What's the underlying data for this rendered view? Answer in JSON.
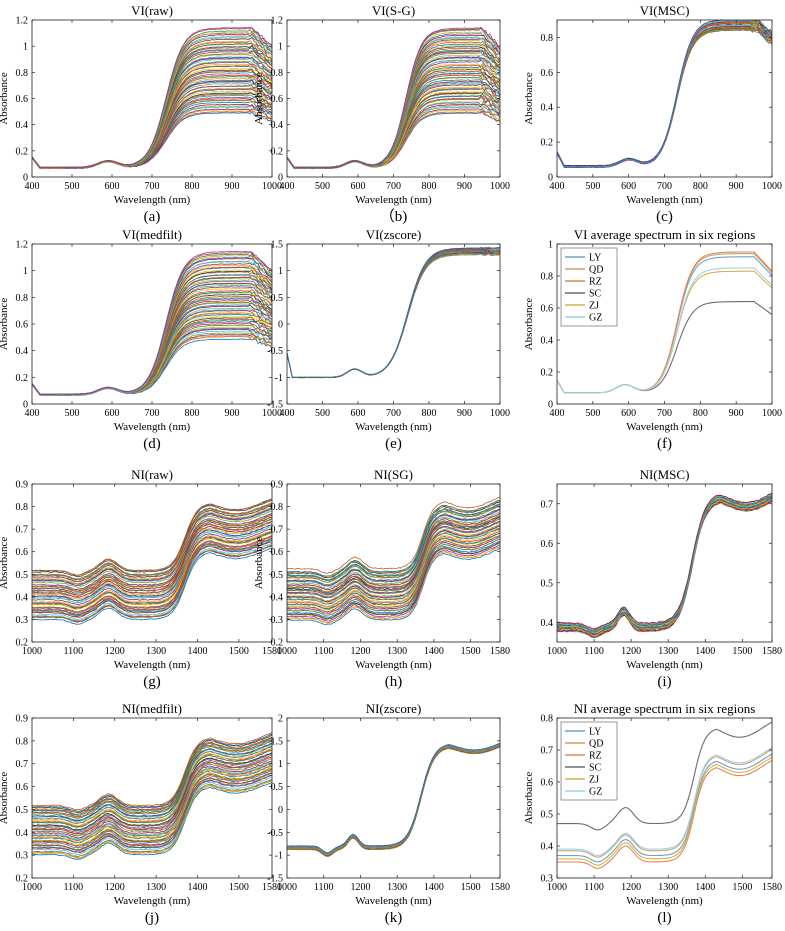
{
  "colors": {
    "palette": [
      "#0072BD",
      "#D95319",
      "#EDB120",
      "#7E2F8E",
      "#77AC30",
      "#4DBEEE",
      "#A2142F",
      "#1f77b4",
      "#e6a23c",
      "#3a8f3a",
      "#c0392b",
      "#8e44ad",
      "#16a085",
      "#d35400",
      "#2c3e50",
      "#f1c40f"
    ],
    "regions": {
      "LY": "#6f9fcf",
      "QD": "#c9a36a",
      "RZ": "#e08a5a",
      "SC": "#6d6d6d",
      "ZJ": "#d8b24a",
      "GZ": "#9fd3ea"
    }
  },
  "chart_data": [
    {
      "id": "a",
      "type": "line",
      "title": "VI(raw)",
      "caption": "(a)",
      "xlabel": "Wavelength (nm)",
      "ylabel": "Absorbance",
      "xlim": [
        400,
        1000
      ],
      "ylim": [
        0,
        1.2
      ],
      "xticks": [
        400,
        500,
        600,
        700,
        800,
        900,
        1000
      ],
      "yticks": [
        0,
        0.2,
        0.4,
        0.6,
        0.8,
        1,
        1.2
      ],
      "series_count": 60,
      "series_shape": "vis_raw",
      "series_low": 0.5,
      "series_high": 1.15
    },
    {
      "id": "b",
      "type": "line",
      "title": "VI(S-G)",
      "caption": "（b)",
      "xlabel": "Wavelength (nm)",
      "ylabel": "Absorbance",
      "xlim": [
        400,
        1000
      ],
      "ylim": [
        0,
        1.2
      ],
      "xticks": [
        400,
        500,
        600,
        700,
        800,
        900,
        1000
      ],
      "yticks": [
        0,
        0.2,
        0.4,
        0.6,
        0.8,
        1,
        1.2
      ],
      "series_count": 60,
      "series_shape": "vis_raw",
      "series_low": 0.5,
      "series_high": 1.15
    },
    {
      "id": "c",
      "type": "line",
      "title": "VI(MSC)",
      "caption": "(c)",
      "xlabel": "Wavelength (nm)",
      "ylabel": "Absorbance",
      "xlim": [
        400,
        1000
      ],
      "ylim": [
        0,
        0.9
      ],
      "xticks": [
        400,
        500,
        600,
        700,
        800,
        900,
        1000
      ],
      "yticks": [
        0,
        0.2,
        0.4,
        0.6,
        0.8
      ],
      "series_count": 40,
      "series_shape": "vis_msc",
      "series_low": 0.84,
      "series_high": 0.9
    },
    {
      "id": "d",
      "type": "line",
      "title": "VI(medfilt)",
      "caption": "(d)",
      "xlabel": "Wavelength (nm)",
      "ylabel": "Absorbance",
      "xlim": [
        400,
        1000
      ],
      "ylim": [
        0,
        1.2
      ],
      "xticks": [
        400,
        500,
        600,
        700,
        800,
        900,
        1000
      ],
      "yticks": [
        0,
        0.2,
        0.4,
        0.6,
        0.8,
        1,
        1.2
      ],
      "series_count": 60,
      "series_shape": "vis_raw",
      "series_low": 0.5,
      "series_high": 1.15
    },
    {
      "id": "e",
      "type": "line",
      "title": "VI(zscore)",
      "caption": "(e)",
      "xlabel": "Wavelength (nm)",
      "ylabel": "",
      "xlim": [
        400,
        1000
      ],
      "ylim": [
        -1.5,
        1.5
      ],
      "xticks": [
        400,
        500,
        600,
        700,
        800,
        900,
        1000
      ],
      "yticks": [
        -1.5,
        -1,
        -0.5,
        0,
        0.5,
        1,
        1.5
      ],
      "series_count": 40,
      "series_shape": "vis_z",
      "series_low": 1.35,
      "series_high": 1.48
    },
    {
      "id": "f",
      "type": "line",
      "title": "VI average spectrum in six regions",
      "caption": "(f)",
      "xlabel": "Wavelength (nm)",
      "ylabel": "Absorbance",
      "xlim": [
        400,
        1000
      ],
      "ylim": [
        0,
        1
      ],
      "xticks": [
        400,
        500,
        600,
        700,
        800,
        900,
        1000
      ],
      "yticks": [
        0,
        0.2,
        0.4,
        0.6,
        0.8,
        1
      ],
      "legend": [
        "LY",
        "QD",
        "RZ",
        "SC",
        "ZJ",
        "GZ"
      ],
      "legend_position": "top-left",
      "series_shape": "vis_raw",
      "region_levels": {
        "LY": 0.93,
        "QD": 0.95,
        "RZ": 0.96,
        "SC": 0.65,
        "ZJ": 0.84,
        "GZ": 0.86
      }
    },
    {
      "id": "g",
      "type": "line",
      "title": "NI(raw)",
      "caption": "(g)",
      "xlabel": "Wavelength (nm)",
      "ylabel": "Absorbance",
      "xlim": [
        1000,
        1580
      ],
      "ylim": [
        0.2,
        0.9
      ],
      "xticks": [
        1000,
        1100,
        1200,
        1300,
        1400,
        1500,
        1580
      ],
      "yticks": [
        0.2,
        0.3,
        0.4,
        0.5,
        0.6,
        0.7,
        0.8,
        0.9
      ],
      "series_count": 50,
      "series_shape": "nir",
      "series_low": 0.3,
      "series_high": 0.52
    },
    {
      "id": "h",
      "type": "line",
      "title": "NI(SG)",
      "caption": "(h)",
      "xlabel": "Wavelength (nm)",
      "ylabel": "Absorbance",
      "xlim": [
        1000,
        1580
      ],
      "ylim": [
        0.2,
        0.9
      ],
      "xticks": [
        1000,
        1100,
        1200,
        1300,
        1400,
        1500,
        1580
      ],
      "yticks": [
        0.2,
        0.3,
        0.4,
        0.5,
        0.6,
        0.7,
        0.8,
        0.9
      ],
      "series_count": 50,
      "series_shape": "nir",
      "series_low": 0.3,
      "series_high": 0.52
    },
    {
      "id": "i",
      "type": "line",
      "title": "NI(MSC)",
      "caption": "(i)",
      "xlabel": "Wavelength (nm)",
      "ylabel": "",
      "xlim": [
        1000,
        1580
      ],
      "ylim": [
        0.35,
        0.75
      ],
      "xticks": [
        1000,
        1100,
        1200,
        1300,
        1400,
        1500,
        1580
      ],
      "yticks": [
        0.4,
        0.5,
        0.6,
        0.7
      ],
      "series_count": 40,
      "series_shape": "nir_msc",
      "series_low": 0.38,
      "series_high": 0.395
    },
    {
      "id": "j",
      "type": "line",
      "title": "NI(medfilt)",
      "caption": "(j)",
      "xlabel": "Wavelength (nm)",
      "ylabel": "Absorbance",
      "xlim": [
        1000,
        1580
      ],
      "ylim": [
        0.2,
        0.9
      ],
      "xticks": [
        1000,
        1100,
        1200,
        1300,
        1400,
        1500,
        1580
      ],
      "yticks": [
        0.2,
        0.3,
        0.4,
        0.5,
        0.6,
        0.7,
        0.8,
        0.9
      ],
      "series_count": 50,
      "series_shape": "nir",
      "series_low": 0.3,
      "series_high": 0.52
    },
    {
      "id": "k",
      "type": "line",
      "title": "NI(zscore)",
      "caption": "(k)",
      "xlabel": "Wavelength (nm)",
      "ylabel": "",
      "xlim": [
        1000,
        1580
      ],
      "ylim": [
        -1.5,
        2
      ],
      "xticks": [
        1000,
        1100,
        1200,
        1300,
        1400,
        1500,
        1580
      ],
      "yticks": [
        -1.5,
        -1,
        -0.5,
        0,
        0.5,
        1,
        1.5,
        2
      ],
      "series_count": 40,
      "series_shape": "nir_z",
      "series_low": -0.88,
      "series_high": -0.8
    },
    {
      "id": "l",
      "type": "line",
      "title": "NI average spectrum in six regions",
      "caption": "(l)",
      "xlabel": "Wavelength (nm)",
      "ylabel": "Absorbance",
      "xlim": [
        1000,
        1580
      ],
      "ylim": [
        0.3,
        0.8
      ],
      "xticks": [
        1000,
        1100,
        1200,
        1300,
        1400,
        1500,
        1580
      ],
      "yticks": [
        0.3,
        0.4,
        0.5,
        0.6,
        0.7,
        0.8
      ],
      "legend": [
        "LY",
        "QD",
        "RZ",
        "SC",
        "ZJ",
        "GZ"
      ],
      "legend_position": "top-left",
      "series_shape": "nir",
      "region_levels": {
        "LY": 0.37,
        "QD": 0.385,
        "RZ": 0.35,
        "SC": 0.47,
        "ZJ": 0.36,
        "GZ": 0.39
      }
    }
  ]
}
